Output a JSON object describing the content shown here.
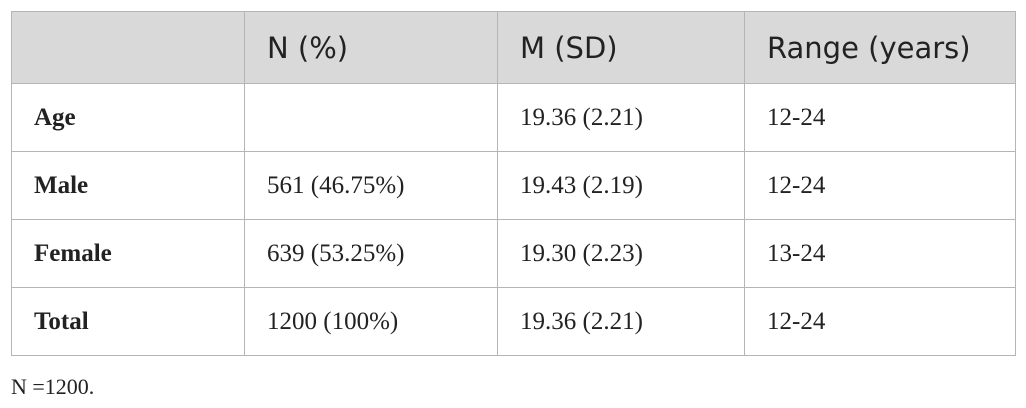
{
  "table": {
    "headers": [
      "",
      "N (%)",
      "M (SD)",
      "Range (years)"
    ],
    "rows": [
      {
        "label": "Age",
        "n_pct": "",
        "m_sd": "19.36 (2.21)",
        "range": "12-24"
      },
      {
        "label": "Male",
        "n_pct": "561 (46.75%)",
        "m_sd": "19.43 (2.19)",
        "range": "12-24"
      },
      {
        "label": "Female",
        "n_pct": "639 (53.25%)",
        "m_sd": "19.30 (2.23)",
        "range": "13-24"
      },
      {
        "label": "Total",
        "n_pct": "1200 (100%)",
        "m_sd": "19.36 (2.21)",
        "range": "12-24"
      }
    ]
  },
  "footnote": "N =1200.",
  "colors": {
    "header_bg": "#d9d9d9",
    "border": "#b5b5b5",
    "text": "#222222"
  }
}
